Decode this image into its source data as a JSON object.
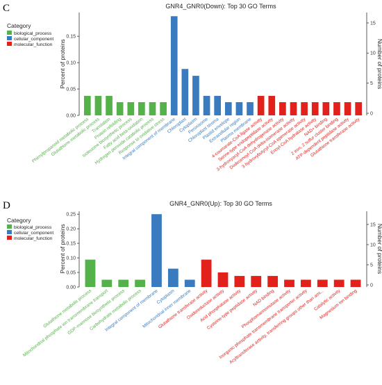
{
  "colors": {
    "biological_process": "#55b14a",
    "cellular_component": "#3a7bbf",
    "molecular_function": "#e3211c"
  },
  "chart_data": [
    {
      "panel": "C",
      "type": "bar",
      "title": "GNR4_GNR0(Down): Top 30 GO Terms",
      "ylabel": "Percent of proteins",
      "y2label": "Number of proteins",
      "ylim": [
        0,
        0.195
      ],
      "yticks": [
        "0.00",
        "0.05",
        "0.10",
        "0.15"
      ],
      "y2ticks": [
        "0",
        "5",
        "10",
        "15"
      ],
      "legend": {
        "title": "Category",
        "entries": [
          "biological_process",
          "cellular_component",
          "molecular_function"
        ],
        "placement": "top-left"
      },
      "categories": [
        "Phenylpropanoid metabolic process",
        "Glutathione metabolic process",
        "Translation",
        "Protein refolding",
        "Isoleucine biosynthetic process",
        "Fatty acid beta-oxidation",
        "Hydrogen peroxide catabolic process",
        "Response to oxidative stress",
        "Integral component of membrane",
        "Chloroplast",
        "Cytoplasm",
        "Peroxisome",
        "Chloroplast stroma",
        "Plastid envelope",
        "Extracellular region",
        "Plasma membrane",
        "4-coumarate-CoA ligase activity",
        "Serine-type endopeptidase activity",
        "3-hydroxyacyl-CoA dehydrogenase activity",
        "Dodecenoyl-CoA delta-isomerase activity",
        "3-hydroxybutyryl-CoA epimerase activity",
        "Enoyl-CoA hydratase activity",
        "NAD+ binding",
        "2 iron, 2 sulfur cluster binding",
        "ATP-dependent peptidase activity",
        "Glutathione transferase activity"
      ],
      "groups": [
        "biological_process",
        "biological_process",
        "biological_process",
        "biological_process",
        "biological_process",
        "biological_process",
        "biological_process",
        "biological_process",
        "cellular_component",
        "cellular_component",
        "cellular_component",
        "cellular_component",
        "cellular_component",
        "cellular_component",
        "cellular_component",
        "cellular_component",
        "molecular_function",
        "molecular_function",
        "molecular_function",
        "molecular_function",
        "molecular_function",
        "molecular_function",
        "molecular_function",
        "molecular_function",
        "molecular_function",
        "molecular_function"
      ],
      "values": [
        0.037,
        0.037,
        0.037,
        0.025,
        0.025,
        0.025,
        0.025,
        0.025,
        0.188,
        0.088,
        0.075,
        0.037,
        0.037,
        0.025,
        0.025,
        0.025,
        0.037,
        0.037,
        0.025,
        0.025,
        0.025,
        0.025,
        0.025,
        0.025,
        0.025,
        0.025
      ]
    },
    {
      "panel": "D",
      "type": "bar",
      "title": "GNR4_GNR0(Up): Top 30 GO Terms",
      "ylabel": "Percent of proteins",
      "y2label": "Number of proteins",
      "ylim": [
        0,
        0.26
      ],
      "yticks": [
        "0.00",
        "0.05",
        "0.10",
        "0.15",
        "0.20",
        "0.25"
      ],
      "y2ticks": [
        "0",
        "5",
        "10",
        "15"
      ],
      "legend": {
        "title": "Category",
        "entries": [
          "biological_process",
          "cellular_component",
          "molecular_function"
        ],
        "placement": "top-left"
      },
      "categories": [
        "Glutathione metabolic process",
        "Mitochondrial phosphate ion transmembrane transport",
        "GDP-mannose biosynthetic process",
        "Carbohydrate metabolic process",
        "Integral component of membrane",
        "Cytoplasm",
        "Mitochondrial inner membrane",
        "Glutathione transferase activity",
        "Oxidoreductase activity",
        "Acid phosphatase activity",
        "Cysteine-type peptidase activity",
        "NAD binding",
        "Phosphomannomutase activity",
        "Inorganic phosphate transmembrane transporter activity",
        "Acyltransferase activity, transferring groups other than ami...",
        "Catalytic activity",
        "Magnesium ion binding"
      ],
      "groups": [
        "biological_process",
        "biological_process",
        "biological_process",
        "biological_process",
        "cellular_component",
        "cellular_component",
        "cellular_component",
        "molecular_function",
        "molecular_function",
        "molecular_function",
        "molecular_function",
        "molecular_function",
        "molecular_function",
        "molecular_function",
        "molecular_function",
        "molecular_function",
        "molecular_function"
      ],
      "values": [
        0.094,
        0.025,
        0.025,
        0.025,
        0.25,
        0.063,
        0.025,
        0.094,
        0.05,
        0.038,
        0.038,
        0.038,
        0.025,
        0.025,
        0.025,
        0.025,
        0.025
      ]
    }
  ]
}
